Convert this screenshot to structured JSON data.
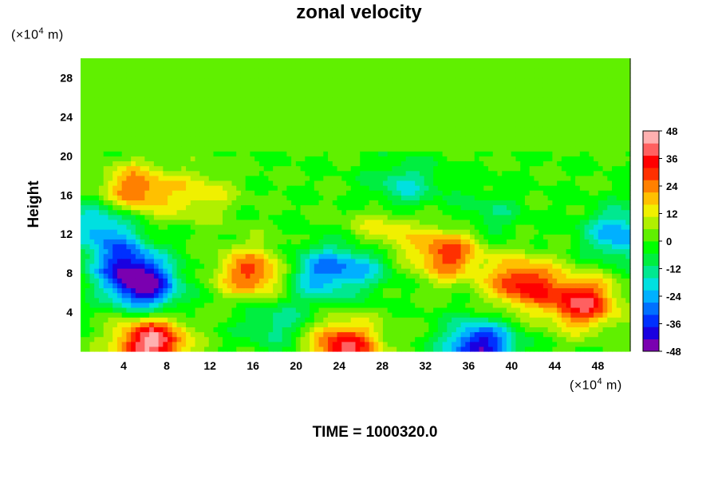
{
  "chart_data": {
    "type": "heatmap",
    "title": "zonal velocity",
    "ylabel": "Height",
    "xlabel": "",
    "x_unit": {
      "prefix": "(×10",
      "exp": "4",
      "suffix": " m)"
    },
    "y_unit": {
      "prefix": "(×10",
      "exp": "4",
      "suffix": " m)"
    },
    "xlim": [
      0,
      51
    ],
    "ylim": [
      0,
      30
    ],
    "x_ticks": [
      4,
      8,
      12,
      16,
      20,
      24,
      28,
      32,
      36,
      40,
      44,
      48
    ],
    "y_ticks": [
      4,
      8,
      12,
      16,
      20,
      24,
      28
    ],
    "colorbar": {
      "min": -48,
      "max": 48,
      "ticks": [
        48,
        36,
        24,
        12,
        0,
        -12,
        -24,
        -36,
        -48
      ],
      "colors": [
        "#7a00b0",
        "#1a00e0",
        "#0030ff",
        "#0070ff",
        "#00b0ff",
        "#00e0e0",
        "#00e890",
        "#00ee40",
        "#00ff00",
        "#60f000",
        "#b0f000",
        "#f0f000",
        "#ffc000",
        "#ff8000",
        "#ff3000",
        "#ff0000",
        "#ff6060",
        "#ffb0b0"
      ]
    },
    "field": {
      "background": 0,
      "upper_layer_value": 1,
      "features": [
        {
          "x": 6,
          "y": 6.5,
          "value": -40
        },
        {
          "x": 4,
          "y": 9,
          "value": -30
        },
        {
          "x": 16,
          "y": 8,
          "value": 30
        },
        {
          "x": 6.5,
          "y": 1,
          "value": 46
        },
        {
          "x": 24.5,
          "y": 0.5,
          "value": 38
        },
        {
          "x": 37,
          "y": 0.5,
          "value": -42
        },
        {
          "x": 41,
          "y": 7,
          "value": 34
        },
        {
          "x": 46.5,
          "y": 5,
          "value": 38
        },
        {
          "x": 5,
          "y": 16.5,
          "value": 28
        },
        {
          "x": 2,
          "y": 13,
          "value": -24
        },
        {
          "x": 28,
          "y": 12,
          "value": 16
        },
        {
          "x": 34,
          "y": 10,
          "value": 30
        },
        {
          "x": 26,
          "y": 9,
          "value": -20
        },
        {
          "x": 22,
          "y": 8,
          "value": -24
        },
        {
          "x": 50,
          "y": 12,
          "value": -26
        },
        {
          "x": 30,
          "y": 17,
          "value": -16
        },
        {
          "x": 18,
          "y": 3,
          "value": -14
        },
        {
          "x": 11,
          "y": 16,
          "value": 14
        },
        {
          "x": 38,
          "y": 14,
          "value": -10
        }
      ]
    },
    "time_label": "TIME = 1000320.0"
  }
}
